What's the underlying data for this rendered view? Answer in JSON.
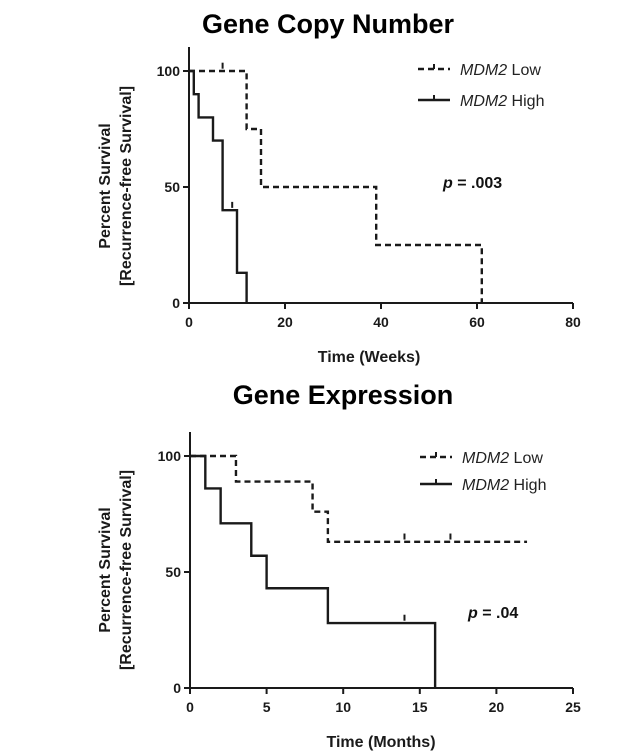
{
  "chart_data": [
    {
      "type": "line",
      "title": "Gene Copy Number",
      "xlabel": "Time (Weeks)",
      "ylabel_line1": "Percent Survival",
      "ylabel_line2": "[Recurrence-free Survival]",
      "xlim": [
        0,
        80
      ],
      "ylim": [
        0,
        110
      ],
      "xticks": [
        0,
        20,
        40,
        60,
        80
      ],
      "yticks": [
        0,
        50,
        100
      ],
      "legend_position": "top-right",
      "annotation": {
        "italic": "p",
        "text": " = .003"
      },
      "series": [
        {
          "gene": "MDM2",
          "level": " Low",
          "style": "dashed",
          "steps": [
            [
              0,
              100
            ],
            [
              12,
              75
            ],
            [
              15,
              50
            ],
            [
              39,
              25
            ],
            [
              61,
              0
            ]
          ],
          "censored": [
            [
              7,
              101
            ]
          ]
        },
        {
          "gene": "MDM2",
          "level": " High",
          "style": "solid",
          "steps": [
            [
              0,
              100
            ],
            [
              1,
              90
            ],
            [
              2,
              80
            ],
            [
              5,
              70
            ],
            [
              7,
              40
            ],
            [
              10,
              13
            ],
            [
              12,
              0
            ]
          ],
          "censored": [
            [
              9,
              41
            ]
          ]
        }
      ]
    },
    {
      "type": "line",
      "title": "Gene Expression",
      "xlabel": "Time (Months)",
      "ylabel_line1": "Percent Survival",
      "ylabel_line2": "[Recurrence-free Survival]",
      "xlim": [
        0,
        25
      ],
      "ylim": [
        0,
        110
      ],
      "xticks": [
        0,
        5,
        10,
        15,
        20,
        25
      ],
      "yticks": [
        0,
        50,
        100
      ],
      "legend_position": "top-right",
      "annotation": {
        "italic": "p",
        "text": " = .04"
      },
      "series": [
        {
          "gene": "MDM2",
          "level": " Low",
          "style": "dashed",
          "steps": [
            [
              0,
              100
            ],
            [
              3,
              89
            ],
            [
              8,
              76
            ],
            [
              9,
              63
            ],
            [
              22,
              63
            ]
          ],
          "censored": [
            [
              14,
              64
            ],
            [
              17,
              64
            ]
          ]
        },
        {
          "gene": "MDM2",
          "level": " High",
          "style": "solid",
          "steps": [
            [
              0,
              100
            ],
            [
              1,
              86
            ],
            [
              2,
              71
            ],
            [
              4,
              57
            ],
            [
              5,
              43
            ],
            [
              9,
              28
            ],
            [
              16,
              0
            ]
          ],
          "censored": [
            [
              14,
              29
            ]
          ]
        }
      ]
    }
  ]
}
